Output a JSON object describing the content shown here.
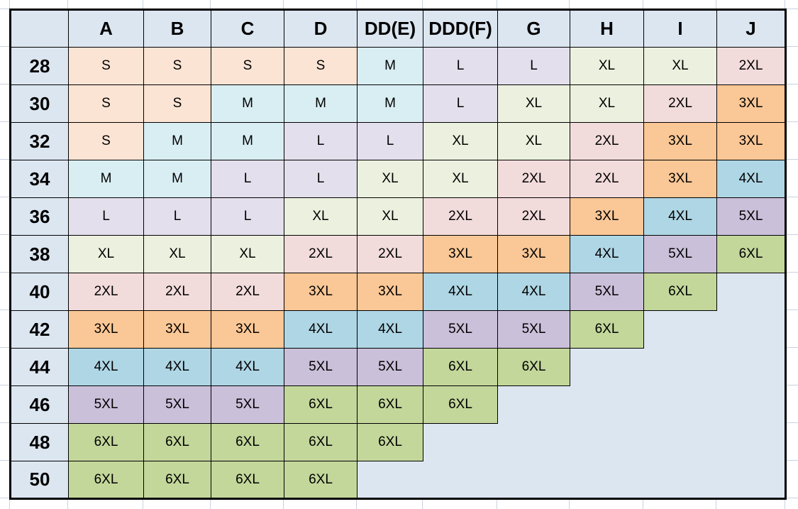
{
  "chart_data": {
    "type": "table",
    "corner_label": "",
    "columns": [
      "A",
      "B",
      "C",
      "D",
      "DD(E)",
      "DDD(F)",
      "G",
      "H",
      "I",
      "J"
    ],
    "row_labels": [
      "28",
      "30",
      "32",
      "34",
      "36",
      "38",
      "40",
      "42",
      "44",
      "46",
      "48",
      "50"
    ],
    "rows": [
      [
        "S",
        "S",
        "S",
        "S",
        "M",
        "L",
        "L",
        "XL",
        "XL",
        "2XL"
      ],
      [
        "S",
        "S",
        "M",
        "M",
        "M",
        "L",
        "XL",
        "XL",
        "2XL",
        "3XL"
      ],
      [
        "S",
        "M",
        "M",
        "L",
        "L",
        "XL",
        "XL",
        "2XL",
        "3XL",
        "3XL"
      ],
      [
        "M",
        "M",
        "L",
        "L",
        "XL",
        "XL",
        "2XL",
        "2XL",
        "3XL",
        "4XL"
      ],
      [
        "L",
        "L",
        "L",
        "XL",
        "XL",
        "2XL",
        "2XL",
        "3XL",
        "4XL",
        "5XL"
      ],
      [
        "XL",
        "XL",
        "XL",
        "2XL",
        "2XL",
        "3XL",
        "3XL",
        "4XL",
        "5XL",
        "6XL"
      ],
      [
        "2XL",
        "2XL",
        "2XL",
        "3XL",
        "3XL",
        "4XL",
        "4XL",
        "5XL",
        "6XL",
        ""
      ],
      [
        "3XL",
        "3XL",
        "3XL",
        "4XL",
        "4XL",
        "5XL",
        "5XL",
        "6XL",
        "",
        ""
      ],
      [
        "4XL",
        "4XL",
        "4XL",
        "5XL",
        "5XL",
        "6XL",
        "6XL",
        "",
        "",
        ""
      ],
      [
        "5XL",
        "5XL",
        "5XL",
        "6XL",
        "6XL",
        "6XL",
        "",
        "",
        "",
        ""
      ],
      [
        "6XL",
        "6XL",
        "6XL",
        "6XL",
        "6XL",
        "",
        "",
        "",
        "",
        ""
      ],
      [
        "6XL",
        "6XL",
        "6XL",
        "6XL",
        "",
        "",
        "",
        "",
        "",
        ""
      ]
    ],
    "size_fill_colors": {
      "S": "#FCE4D4",
      "M": "#D9EEF3",
      "L": "#E3DFEC",
      "XL": "#EBF1DE",
      "2XL": "#F2DCDB",
      "3XL": "#FAC796",
      "4XL": "#AFD6E5",
      "5XL": "#CBC0DA",
      "6XL": "#C3D79B"
    },
    "header_fill": "#DCE6F1",
    "empty_fill": "#DCE6F1",
    "table_border_color": "#000000",
    "text_color": "#000000",
    "sheet_gridline_color": "#C9D2E0",
    "layout_hints": {
      "gridlines_outside_table": "on",
      "legend": "none",
      "title": "none"
    }
  }
}
